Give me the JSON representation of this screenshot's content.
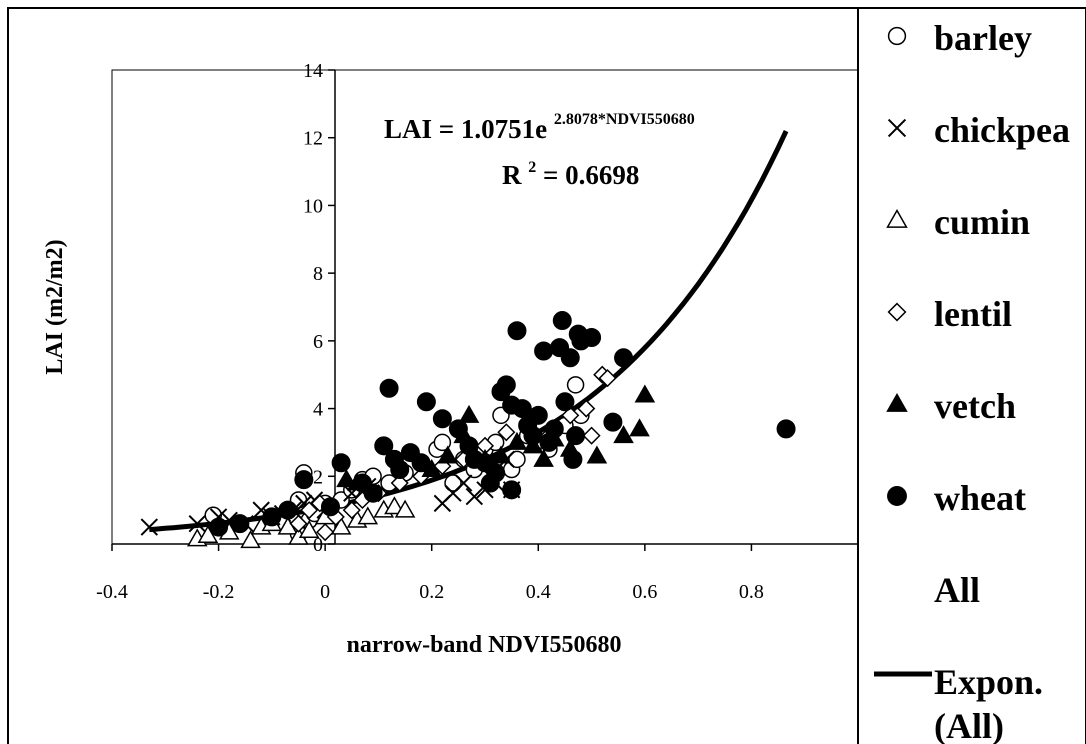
{
  "chart_data": {
    "type": "scatter",
    "xlabel": "narrow-band NDVI550680",
    "ylabel": "LAI (m2/m2)",
    "xlim": [
      -0.4,
      1.0
    ],
    "ylim": [
      0,
      14
    ],
    "x_ticks": [
      "-0.4",
      "-0.2",
      "0",
      "0.2",
      "0.4",
      "0.6",
      "0.8"
    ],
    "y_ticks": [
      "0",
      "2",
      "4",
      "6",
      "8",
      "10",
      "12",
      "14"
    ],
    "grid": false,
    "legend_position": "right",
    "equation": {
      "prefix": "LAI = 1.0751e",
      "exponent": "2.8078*NDVI550680",
      "r2_label": "R",
      "r2_power": "2",
      "r2_value": " = 0.6698"
    },
    "trendline": {
      "name": "Expon. (All)",
      "a": 1.0751,
      "b": 2.8078,
      "x_range": [
        -0.33,
        0.865
      ]
    },
    "series": [
      {
        "name": "barley",
        "marker": "circle-open",
        "points": [
          [
            -0.21,
            0.85
          ],
          [
            -0.2,
            0.5
          ],
          [
            -0.05,
            1.3
          ],
          [
            -0.04,
            2.1
          ],
          [
            -0.03,
            0.7
          ],
          [
            -0.05,
            0.3
          ],
          [
            -0.02,
            0.9
          ],
          [
            0.0,
            1.2
          ],
          [
            0.03,
            1.3
          ],
          [
            0.05,
            1.6
          ],
          [
            0.07,
            1.9
          ],
          [
            0.09,
            2.0
          ],
          [
            0.12,
            1.8
          ],
          [
            0.15,
            2.1
          ],
          [
            0.18,
            2.4
          ],
          [
            0.21,
            2.8
          ],
          [
            0.22,
            3.0
          ],
          [
            0.24,
            1.8
          ],
          [
            0.26,
            2.5
          ],
          [
            0.28,
            2.2
          ],
          [
            0.3,
            2.8
          ],
          [
            0.32,
            3.0
          ],
          [
            0.33,
            3.8
          ],
          [
            0.35,
            2.2
          ],
          [
            0.36,
            2.5
          ],
          [
            0.38,
            3.2
          ],
          [
            0.4,
            3.0
          ],
          [
            0.42,
            2.8
          ],
          [
            0.45,
            3.5
          ],
          [
            0.47,
            4.7
          ],
          [
            0.48,
            3.8
          ]
        ]
      },
      {
        "name": "chickpea",
        "marker": "x",
        "points": [
          [
            -0.33,
            0.5
          ],
          [
            -0.24,
            0.6
          ],
          [
            -0.2,
            0.8
          ],
          [
            -0.18,
            0.7
          ],
          [
            -0.15,
            0.6
          ],
          [
            -0.12,
            1.0
          ],
          [
            -0.1,
            0.8
          ],
          [
            -0.08,
            0.9
          ],
          [
            -0.06,
            1.0
          ],
          [
            -0.04,
            1.2
          ],
          [
            -0.02,
            1.3
          ],
          [
            0.0,
            1.0
          ],
          [
            0.05,
            1.5
          ],
          [
            0.08,
            1.7
          ],
          [
            0.22,
            1.2
          ],
          [
            0.24,
            1.5
          ],
          [
            0.26,
            1.8
          ],
          [
            0.28,
            1.4
          ],
          [
            0.3,
            1.6
          ],
          [
            0.31,
            2.0
          ],
          [
            0.32,
            1.8
          ],
          [
            0.34,
            2.5
          ],
          [
            0.35,
            1.6
          ]
        ]
      },
      {
        "name": "cumin",
        "marker": "triangle-open",
        "points": [
          [
            -0.24,
            0.15
          ],
          [
            -0.22,
            0.25
          ],
          [
            -0.18,
            0.35
          ],
          [
            -0.14,
            0.1
          ],
          [
            -0.12,
            0.5
          ],
          [
            -0.1,
            0.6
          ],
          [
            -0.07,
            0.5
          ],
          [
            -0.05,
            0.2
          ],
          [
            -0.03,
            0.4
          ],
          [
            0.0,
            0.8
          ],
          [
            0.03,
            0.5
          ],
          [
            0.06,
            0.7
          ],
          [
            0.08,
            0.8
          ],
          [
            0.11,
            1.0
          ],
          [
            0.13,
            1.1
          ],
          [
            0.15,
            1.0
          ]
        ]
      },
      {
        "name": "lentil",
        "marker": "diamond-open",
        "points": [
          [
            -0.05,
            0.6
          ],
          [
            -0.03,
            1.0
          ],
          [
            -0.01,
            1.2
          ],
          [
            0.0,
            0.35
          ],
          [
            0.02,
            0.8
          ],
          [
            0.05,
            1.0
          ],
          [
            0.07,
            1.3
          ],
          [
            0.1,
            1.5
          ],
          [
            0.14,
            1.8
          ],
          [
            0.18,
            2.0
          ],
          [
            0.22,
            2.3
          ],
          [
            0.26,
            2.5
          ],
          [
            0.3,
            2.9
          ],
          [
            0.34,
            3.3
          ],
          [
            0.38,
            3.6
          ],
          [
            0.42,
            3.2
          ],
          [
            0.46,
            3.8
          ],
          [
            0.49,
            4.0
          ],
          [
            0.5,
            3.2
          ],
          [
            0.52,
            5.0
          ],
          [
            0.53,
            4.9
          ]
        ]
      },
      {
        "name": "vetch",
        "marker": "triangle-filled",
        "points": [
          [
            0.04,
            1.9
          ],
          [
            0.06,
            1.8
          ],
          [
            0.2,
            2.2
          ],
          [
            0.23,
            2.6
          ],
          [
            0.26,
            3.2
          ],
          [
            0.27,
            3.8
          ],
          [
            0.3,
            2.5
          ],
          [
            0.33,
            2.6
          ],
          [
            0.36,
            3.0
          ],
          [
            0.39,
            2.9
          ],
          [
            0.41,
            2.5
          ],
          [
            0.43,
            3.1
          ],
          [
            0.46,
            2.8
          ],
          [
            0.51,
            2.6
          ],
          [
            0.56,
            3.2
          ],
          [
            0.59,
            3.4
          ],
          [
            0.6,
            4.4
          ]
        ]
      },
      {
        "name": "wheat",
        "marker": "circle-filled",
        "points": [
          [
            -0.2,
            0.5
          ],
          [
            -0.16,
            0.6
          ],
          [
            -0.1,
            0.8
          ],
          [
            -0.07,
            1.0
          ],
          [
            -0.04,
            1.9
          ],
          [
            0.01,
            1.1
          ],
          [
            0.03,
            2.4
          ],
          [
            0.07,
            1.8
          ],
          [
            0.09,
            1.5
          ],
          [
            0.11,
            2.9
          ],
          [
            0.12,
            4.6
          ],
          [
            0.13,
            2.5
          ],
          [
            0.14,
            2.2
          ],
          [
            0.16,
            2.7
          ],
          [
            0.18,
            2.4
          ],
          [
            0.19,
            4.2
          ],
          [
            0.22,
            3.7
          ],
          [
            0.25,
            3.4
          ],
          [
            0.27,
            2.9
          ],
          [
            0.28,
            2.5
          ],
          [
            0.3,
            2.4
          ],
          [
            0.31,
            1.8
          ],
          [
            0.32,
            2.1
          ],
          [
            0.33,
            4.5
          ],
          [
            0.34,
            4.7
          ],
          [
            0.35,
            1.6
          ],
          [
            0.35,
            4.1
          ],
          [
            0.36,
            6.3
          ],
          [
            0.37,
            4.0
          ],
          [
            0.38,
            3.5
          ],
          [
            0.39,
            3.2
          ],
          [
            0.4,
            3.8
          ],
          [
            0.41,
            5.7
          ],
          [
            0.42,
            3.0
          ],
          [
            0.43,
            3.4
          ],
          [
            0.44,
            5.8
          ],
          [
            0.445,
            6.6
          ],
          [
            0.45,
            4.2
          ],
          [
            0.46,
            5.5
          ],
          [
            0.465,
            2.5
          ],
          [
            0.47,
            3.2
          ],
          [
            0.475,
            6.2
          ],
          [
            0.48,
            6.0
          ],
          [
            0.5,
            6.1
          ],
          [
            0.54,
            3.6
          ],
          [
            0.56,
            5.5
          ],
          [
            0.865,
            3.4
          ]
        ]
      }
    ],
    "legend": [
      {
        "label": "barley",
        "marker": "circle-open"
      },
      {
        "label": "chickpea",
        "marker": "x"
      },
      {
        "label": "cumin",
        "marker": "triangle-open"
      },
      {
        "label": "lentil",
        "marker": "diamond-open"
      },
      {
        "label": "vetch",
        "marker": "triangle-filled"
      },
      {
        "label": "wheat",
        "marker": "circle-filled"
      },
      {
        "label": "All",
        "marker": "none"
      },
      {
        "label": "Expon.",
        "label2": "(All)",
        "marker": "line"
      }
    ]
  }
}
